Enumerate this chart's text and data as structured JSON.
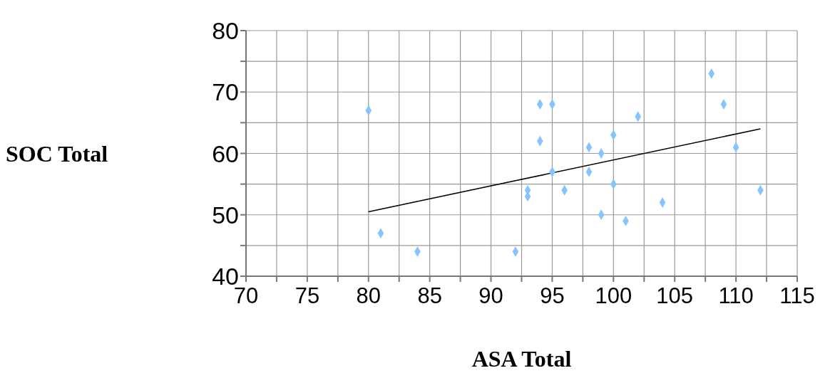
{
  "chart_data": {
    "type": "scatter",
    "xlabel": "ASA Total",
    "ylabel": "SOC Total",
    "xlim": [
      70,
      115
    ],
    "ylim": [
      40,
      80
    ],
    "xticks": [
      70,
      {
        "value": 72.5,
        "label": null
      },
      75,
      {
        "value": 77.5,
        "label": null
      },
      80,
      {
        "value": 82.5,
        "label": null
      },
      85,
      {
        "value": 87.5,
        "label": null
      },
      90,
      {
        "value": 92.5,
        "label": null
      },
      95,
      {
        "value": 97.5,
        "label": null
      },
      100,
      {
        "value": 102.5,
        "label": null
      },
      105,
      {
        "value": 107.5,
        "label": null
      },
      110,
      {
        "value": 112.5,
        "label": null
      },
      115
    ],
    "yticks": [
      40,
      {
        "value": 45,
        "label": null
      },
      50,
      {
        "value": 55,
        "label": null
      },
      60,
      {
        "value": 65,
        "label": null
      },
      70,
      {
        "value": 75,
        "label": null
      },
      80
    ],
    "grid": true,
    "marker": "diamond",
    "series": [
      {
        "color": "#87c4ff",
        "x": [
          80,
          81,
          84,
          92,
          93,
          93,
          94,
          95,
          94,
          95,
          96,
          98,
          98,
          99,
          99,
          100,
          100,
          101,
          102,
          104,
          108,
          109,
          110,
          112
        ],
        "values": [
          67,
          47,
          44,
          44,
          54,
          53,
          68,
          68,
          62,
          57,
          54,
          61,
          57,
          60,
          50,
          63,
          55,
          49,
          66,
          52,
          73,
          68,
          61,
          54
        ]
      },
      {
        "type": "line",
        "color": "#000000",
        "x": [
          80,
          112
        ],
        "values": [
          50.5,
          64
        ],
        "marker": "none",
        "line_style": "solid"
      }
    ]
  }
}
